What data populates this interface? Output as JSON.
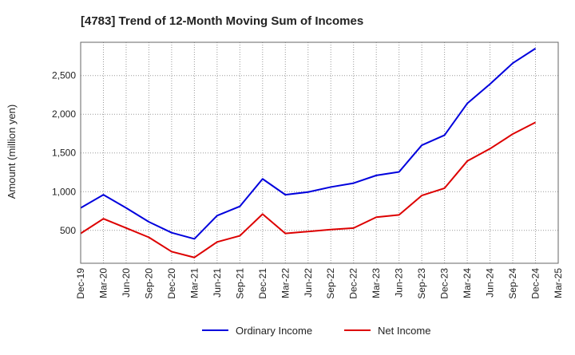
{
  "chart_data": {
    "type": "line",
    "title": "[4783]  Trend of 12-Month Moving Sum of Incomes",
    "ylabel": "Amount (million yen)",
    "xlabel": "",
    "categories": [
      "Dec-19",
      "Mar-20",
      "Jun-20",
      "Sep-20",
      "Dec-20",
      "Mar-21",
      "Jun-21",
      "Sep-21",
      "Dec-21",
      "Mar-22",
      "Jun-22",
      "Sep-22",
      "Dec-22",
      "Mar-23",
      "Jun-23",
      "Sep-23",
      "Dec-23",
      "Mar-24",
      "Jun-24",
      "Sep-24",
      "Dec-24",
      "Mar-25"
    ],
    "yticks": [
      500,
      1000,
      1500,
      2000,
      2500
    ],
    "ytick_labels": [
      "500",
      "1,000",
      "1,500",
      "2,000",
      "2,500"
    ],
    "ylim": [
      75,
      2930
    ],
    "grid": true,
    "legend_position": "bottom",
    "series": [
      {
        "name": "Ordinary Income",
        "color": "#0000dd",
        "values": [
          790,
          960,
          790,
          610,
          470,
          390,
          690,
          810,
          1165,
          960,
          995,
          1060,
          1110,
          1210,
          1255,
          1600,
          1730,
          2140,
          2390,
          2660,
          2850,
          null
        ]
      },
      {
        "name": "Net Income",
        "color": "#dd0000",
        "values": [
          460,
          650,
          530,
          410,
          225,
          150,
          350,
          430,
          710,
          460,
          485,
          510,
          530,
          670,
          700,
          950,
          1045,
          1395,
          1555,
          1745,
          1895,
          null
        ]
      }
    ]
  }
}
